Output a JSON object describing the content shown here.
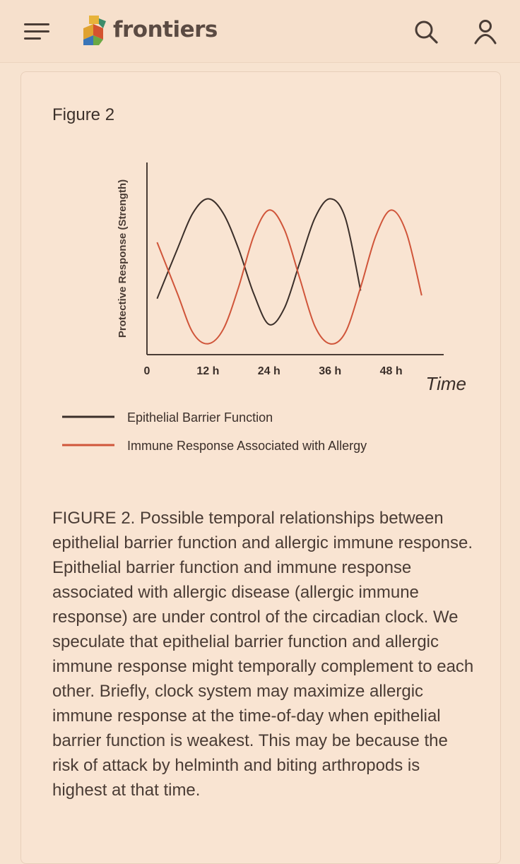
{
  "header": {
    "brand": "frontiers",
    "icons": [
      "menu-icon",
      "frontiers-logo-icon",
      "search-icon",
      "user-icon"
    ]
  },
  "figure": {
    "label": "Figure 2",
    "caption": "FIGURE 2. Possible temporal relationships between epithelial barrier function and allergic immune response. Epithelial barrier function and immune response associated with allergic disease (allergic immune response) are under control of the circadian clock. We speculate that epithelial barrier function and allergic immune response might temporally complement to each other. Briefly, clock system may maximize allergic immune response at the time-of-day when epithelial barrier function is weakest. This may be because the risk of attack by helminth and biting arthropods is highest at that time."
  },
  "chart_data": {
    "type": "line",
    "title": "",
    "xlabel": "Time",
    "ylabel": "Protective Response  (Strength)",
    "x_ticks": [
      "0",
      "12 h",
      "24 h",
      "36 h",
      "48 h"
    ],
    "xlim": [
      0,
      60
    ],
    "ylim": [
      0,
      1
    ],
    "grid": false,
    "legend_position": "bottom",
    "series": [
      {
        "name": "Epithelial Barrier Function",
        "color": "#3b2f2a",
        "x": [
          2,
          6,
          9,
          12,
          15,
          18,
          21,
          24,
          27,
          30,
          33,
          36,
          39,
          42
        ],
        "y": [
          0.33,
          0.64,
          0.86,
          0.95,
          0.86,
          0.64,
          0.36,
          0.17,
          0.27,
          0.55,
          0.83,
          0.95,
          0.83,
          0.38
        ]
      },
      {
        "name": "Immune Response Associated with Allergy",
        "color": "#d0553a",
        "x": [
          2,
          6,
          9,
          12,
          15,
          18,
          21,
          24,
          27,
          30,
          33,
          36,
          39,
          42,
          45,
          48,
          51,
          54
        ],
        "y": [
          0.68,
          0.36,
          0.12,
          0.05,
          0.14,
          0.4,
          0.72,
          0.88,
          0.76,
          0.46,
          0.16,
          0.05,
          0.12,
          0.4,
          0.72,
          0.88,
          0.74,
          0.35
        ]
      }
    ]
  },
  "colors": {
    "background": "#f7e3d0",
    "accent": "#d0553a",
    "text": "#3a2e28"
  }
}
